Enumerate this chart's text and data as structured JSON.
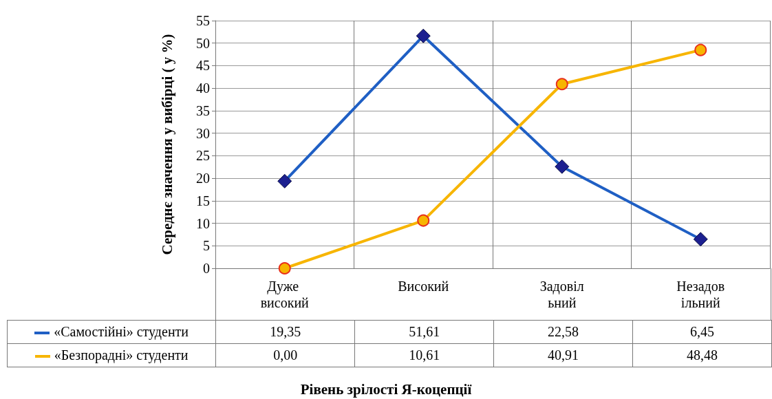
{
  "chart_data": {
    "type": "line",
    "annotations": [
      "Рівень зрілості Я-коцепції"
    ],
    "ylabel": "Середнє значення у вибірці ( у %)",
    "categories": [
      "Дуже високий",
      "Високий",
      "Задовільний",
      "Незадовільний"
    ],
    "series": [
      {
        "name": "«Самостійні» студенти",
        "color": "#1f5fc4",
        "marker": "diamond",
        "values": [
          19.35,
          51.61,
          22.58,
          6.45
        ],
        "value_labels": [
          "19,35",
          "51,61",
          "22,58",
          "6,45"
        ]
      },
      {
        "name": "«Безпорадні» студенти",
        "color": "#f7b500",
        "marker": "circle",
        "values": [
          0,
          10.61,
          40.91,
          48.48
        ],
        "value_labels": [
          "0,00",
          "10,61",
          "40,91",
          "48,48"
        ]
      }
    ],
    "ylim": [
      0,
      55
    ],
    "yticks": [
      0,
      5,
      10,
      15,
      20,
      25,
      30,
      35,
      40,
      45,
      50,
      55
    ],
    "grid": true,
    "legend": "bottom left",
    "line_style": "solid"
  }
}
